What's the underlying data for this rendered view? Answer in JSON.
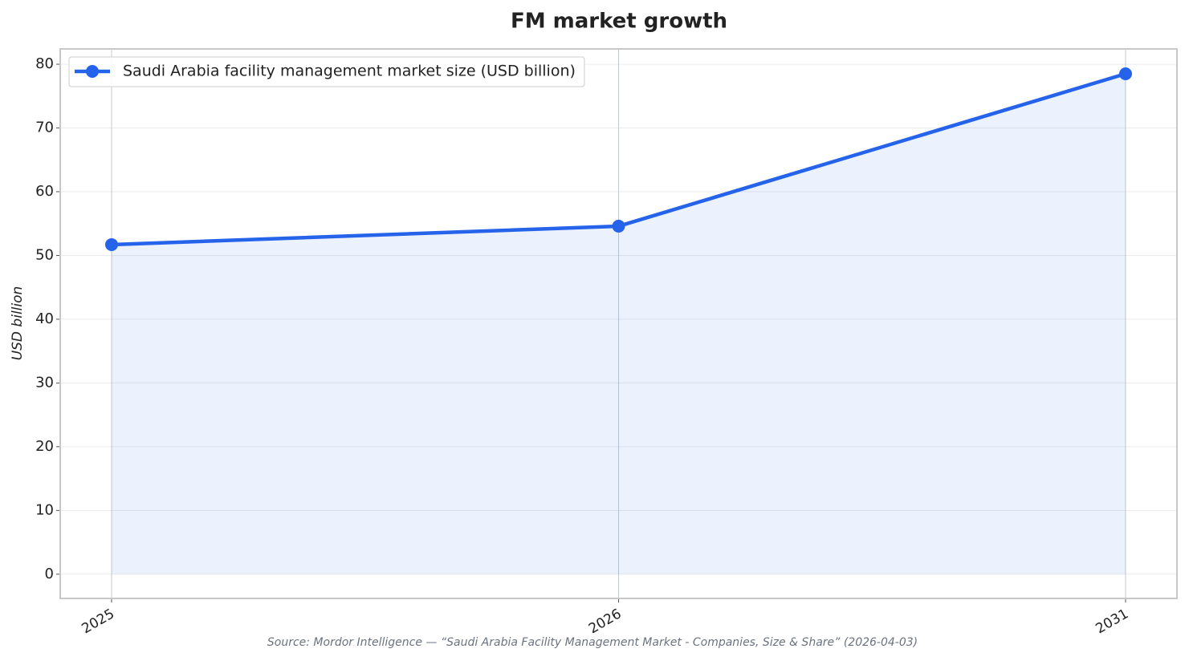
{
  "chart_data": {
    "type": "line",
    "title": "FM market growth",
    "y_label": "USD billion",
    "source": "Source: Mordor Intelligence — “Saudi Arabia Facility Management Market - Companies, Size & Share” (2026-04-03)",
    "categories": [
      "2025",
      "2026",
      "2031"
    ],
    "series": [
      {
        "name": "Saudi Arabia facility management market size (USD billion)",
        "color": "#2563eb",
        "values": [
          51.7,
          54.6,
          78.5
        ]
      }
    ],
    "ylim": [
      -3.8,
      82.4
    ],
    "yticks": [
      0,
      10,
      20,
      30,
      40,
      50,
      60,
      70,
      80
    ],
    "grid": true,
    "fill_area": true,
    "legend": "upper left"
  }
}
